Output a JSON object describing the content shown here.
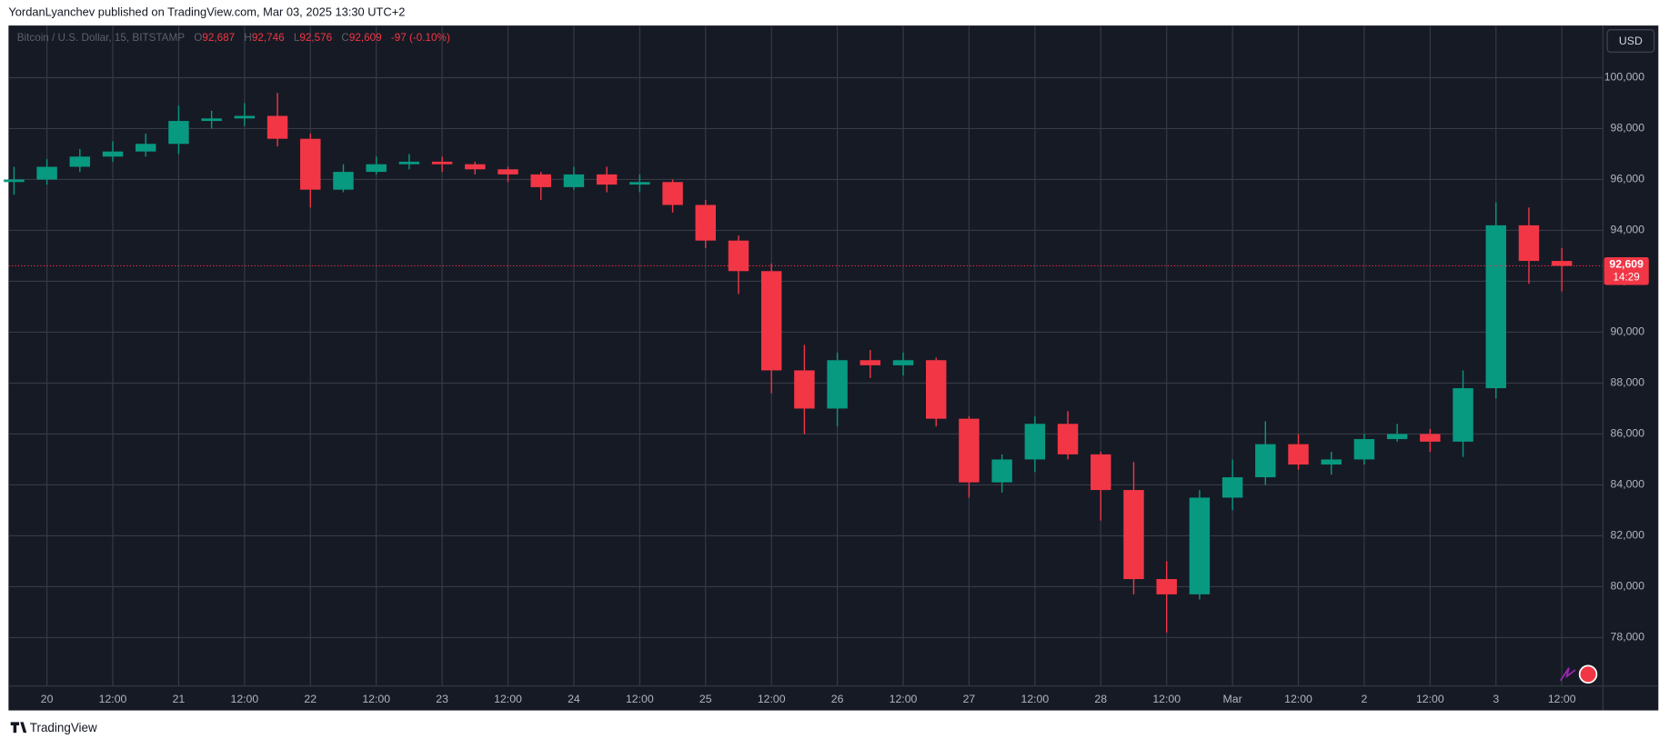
{
  "header": {
    "text": "YordanLyanchev published on TradingView.com, Mar 03, 2025 13:30 UTC+2"
  },
  "footer": {
    "brand": "TradingView"
  },
  "chart_data": {
    "type": "candlestick",
    "symbol": "Bitcoin / U.S. Dollar, 15, BITSTAMP",
    "legend": [
      {
        "key": "O",
        "value": "92,687"
      },
      {
        "key": "H",
        "value": "92,746"
      },
      {
        "key": "L",
        "value": "92,576"
      },
      {
        "key": "C",
        "value": "92,609"
      }
    ],
    "change": "-97 (-0.10%)",
    "currency": "USD",
    "last_price": {
      "value": 92609,
      "label": "92,609"
    },
    "countdown": "14:29",
    "up_color": "#089981",
    "down_color": "#f23645",
    "grid": true,
    "x": [
      -6,
      0,
      6,
      12,
      18,
      24,
      30,
      36,
      42,
      48,
      54,
      60,
      66,
      72,
      78,
      84,
      90,
      96,
      102,
      108,
      114,
      120,
      126,
      132,
      138,
      144,
      150,
      156,
      162,
      168,
      174,
      180,
      186,
      192,
      198,
      204,
      210,
      216,
      222,
      228,
      234,
      240,
      246,
      252,
      258,
      264,
      270,
      276
    ],
    "open": [
      95900,
      96000,
      96500,
      96900,
      97100,
      97400,
      98300,
      98400,
      98500,
      97600,
      95600,
      96300,
      96600,
      96700,
      96600,
      96400,
      96200,
      95700,
      96200,
      95800,
      95900,
      95000,
      93600,
      92400,
      88500,
      87000,
      88900,
      88700,
      88900,
      86600,
      84100,
      85000,
      86400,
      85200,
      83800,
      80300,
      79700,
      83500,
      84300,
      85600,
      84800,
      85000,
      85800,
      86000,
      85700,
      87800,
      94200,
      92800
    ],
    "high": [
      96500,
      96800,
      97200,
      97500,
      97800,
      98900,
      98700,
      99000,
      99400,
      97800,
      96600,
      96900,
      97000,
      96900,
      96700,
      96500,
      96300,
      96500,
      96500,
      96200,
      96000,
      95200,
      93800,
      92700,
      89500,
      89200,
      89300,
      89200,
      89000,
      86700,
      85200,
      86700,
      86900,
      85300,
      84900,
      81000,
      83800,
      85000,
      86500,
      86000,
      85300,
      86000,
      86400,
      86200,
      88500,
      95100,
      94900,
      93300
    ],
    "low": [
      95400,
      95800,
      96300,
      96700,
      96900,
      97000,
      98000,
      98100,
      97300,
      94900,
      95500,
      96200,
      96400,
      96300,
      96200,
      95900,
      95200,
      95600,
      95500,
      95500,
      94700,
      93300,
      91500,
      87600,
      86000,
      86300,
      88200,
      88300,
      86300,
      83500,
      83700,
      84500,
      85000,
      82600,
      79700,
      78200,
      79500,
      83000,
      84000,
      84600,
      84400,
      84800,
      85700,
      85300,
      85100,
      87400,
      91900,
      91600
    ],
    "close": [
      96000,
      96500,
      96900,
      97100,
      97400,
      98300,
      98400,
      98500,
      97600,
      95600,
      96300,
      96600,
      96700,
      96600,
      96400,
      96200,
      95700,
      96200,
      95800,
      95900,
      95000,
      93600,
      92400,
      88500,
      87000,
      88900,
      88700,
      88900,
      86600,
      84100,
      85000,
      86400,
      85200,
      83800,
      80300,
      79700,
      83500,
      84300,
      85600,
      84800,
      85000,
      85800,
      86000,
      85700,
      87800,
      94200,
      92800,
      92609
    ],
    "xlim": [
      -7,
      283.5
    ],
    "ylim": [
      76100,
      102050
    ],
    "xticks": [
      {
        "value": 0,
        "label": "20"
      },
      {
        "value": 12,
        "label": "12:00"
      },
      {
        "value": 24,
        "label": "21"
      },
      {
        "value": 36,
        "label": "12:00"
      },
      {
        "value": 48,
        "label": "22"
      },
      {
        "value": 60,
        "label": "12:00"
      },
      {
        "value": 72,
        "label": "23"
      },
      {
        "value": 84,
        "label": "12:00"
      },
      {
        "value": 96,
        "label": "24"
      },
      {
        "value": 108,
        "label": "12:00"
      },
      {
        "value": 120,
        "label": "25"
      },
      {
        "value": 132,
        "label": "12:00"
      },
      {
        "value": 144,
        "label": "26"
      },
      {
        "value": 156,
        "label": "12:00"
      },
      {
        "value": 168,
        "label": "27"
      },
      {
        "value": 180,
        "label": "12:00"
      },
      {
        "value": 192,
        "label": "28"
      },
      {
        "value": 204,
        "label": "12:00"
      },
      {
        "value": 216,
        "label": "Mar"
      },
      {
        "value": 228,
        "label": "12:00"
      },
      {
        "value": 240,
        "label": "2"
      },
      {
        "value": 252,
        "label": "12:00"
      },
      {
        "value": 264,
        "label": "3"
      },
      {
        "value": 276,
        "label": "12:00"
      }
    ],
    "yticks": [
      {
        "value": 78000,
        "label": "78,000"
      },
      {
        "value": 80000,
        "label": "80,000"
      },
      {
        "value": 82000,
        "label": "82,000"
      },
      {
        "value": 84000,
        "label": "84,000"
      },
      {
        "value": 86000,
        "label": "86,000"
      },
      {
        "value": 88000,
        "label": "88,000"
      },
      {
        "value": 90000,
        "label": "90,000"
      },
      {
        "value": 92000,
        "label": "92,000"
      },
      {
        "value": 94000,
        "label": "94,000"
      },
      {
        "value": 96000,
        "label": "96,000"
      },
      {
        "value": 98000,
        "label": "98,000"
      },
      {
        "value": 100000,
        "label": "100,000"
      }
    ]
  }
}
